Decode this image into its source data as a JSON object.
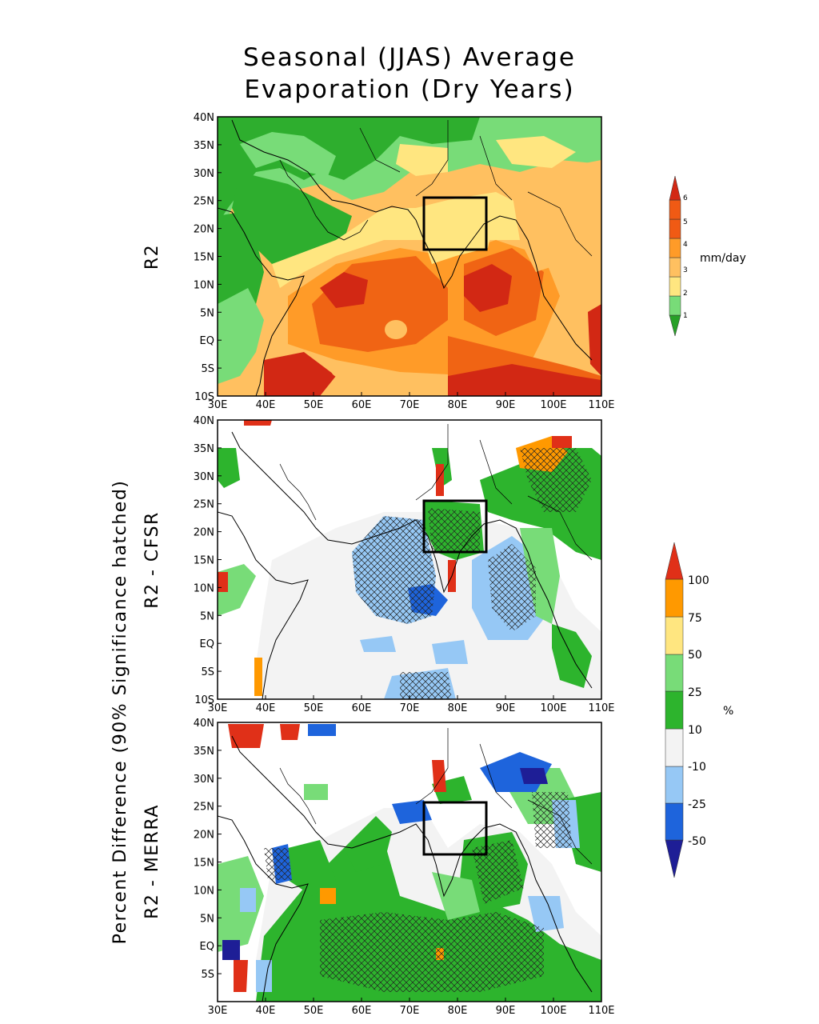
{
  "title": {
    "line1": "Seasonal (JJAS) Average",
    "line2": "Evaporation (Dry Years)"
  },
  "side_labels": {
    "panel1": "R2",
    "group": "Percent Difference (90% Significance hatched)",
    "panel2": "R2 - CFSR",
    "panel3": "R2 - MERRA"
  },
  "axes": {
    "lon_ticks": [
      "30E",
      "40E",
      "50E",
      "60E",
      "70E",
      "80E",
      "90E",
      "100E",
      "110E"
    ],
    "lon_values": [
      30,
      40,
      50,
      60,
      70,
      80,
      90,
      100,
      110
    ],
    "lat_ticks": [
      "40N",
      "35N",
      "30N",
      "25N",
      "20N",
      "15N",
      "10N",
      "5N",
      "EQ",
      "5S",
      "10S"
    ],
    "lat_values": [
      40,
      35,
      30,
      25,
      20,
      15,
      10,
      5,
      0,
      -5,
      -10
    ],
    "lat_ticks_panel3": [
      "40N",
      "35N",
      "30N",
      "25N",
      "20N",
      "15N",
      "10N",
      "5N",
      "EQ",
      "5S"
    ]
  },
  "region_box": {
    "lon": [
      73,
      86
    ],
    "lat": [
      16,
      26
    ]
  },
  "colorbars": {
    "evap": {
      "unit": "mm/day",
      "labels": [
        "1",
        "2",
        "3",
        "4",
        "5",
        "6"
      ],
      "colors": [
        "#28a028",
        "#78dc78",
        "#ffe680",
        "#ffc060",
        "#ff9b28",
        "#f05a14",
        "#d22814"
      ]
    },
    "pct": {
      "unit": "%",
      "labels": [
        "100",
        "75",
        "50",
        "25",
        "10",
        "-10",
        "-25",
        "-50"
      ],
      "colors": [
        "#e03018",
        "#ff9900",
        "#ffe680",
        "#78dc78",
        "#2db42d",
        "#f3f3f3",
        "#96c8f5",
        "#1e64dc",
        "#1e1e96"
      ]
    }
  },
  "palette": {
    "land_dry": "#2eae2e",
    "evap_low": "#78dc78",
    "evap_mid": "#ffe680",
    "evap_4": "#ffc060",
    "evap_5": "#ff9b28",
    "evap_high": "#f06414",
    "evap_max": "#d22814",
    "diff_neutral": "#f3f3f3",
    "diff_pos": "#2db42d",
    "diff_pos_light": "#78dc78",
    "diff_neg": "#96c8f5",
    "diff_neg_strong": "#1e64dc",
    "diff_neg_max": "#1e1e96",
    "diff_high": "#e03018",
    "diff_orange": "#ff9900"
  }
}
